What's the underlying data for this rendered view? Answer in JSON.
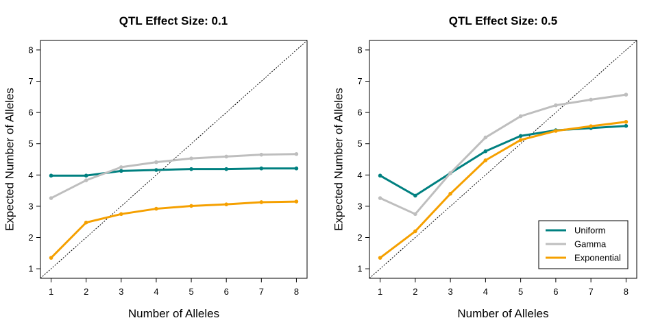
{
  "chart_data": [
    {
      "type": "line",
      "title": "QTL Effect Size: 0.1",
      "xlabel": "Number of Alleles",
      "ylabel": "Expected Number of Alleles",
      "xlim": [
        1,
        8
      ],
      "ylim": [
        1,
        8
      ],
      "x": [
        1,
        2,
        3,
        4,
        5,
        6,
        7,
        8
      ],
      "xticks": [
        "1",
        "2",
        "3",
        "4",
        "5",
        "6",
        "7",
        "8"
      ],
      "yticks": [
        "1",
        "2",
        "3",
        "4",
        "5",
        "6",
        "7",
        "8"
      ],
      "reference_line": "y = x (dotted)",
      "legend": false,
      "series": [
        {
          "name": "Uniform",
          "color": "#008080",
          "values": [
            3.98,
            3.98,
            4.13,
            4.16,
            4.19,
            4.19,
            4.21,
            4.21
          ]
        },
        {
          "name": "Gamma",
          "color": "#bebebe",
          "values": [
            3.26,
            3.83,
            4.25,
            4.41,
            4.53,
            4.59,
            4.65,
            4.67
          ]
        },
        {
          "name": "Exponential",
          "color": "#f5a000",
          "values": [
            1.35,
            2.48,
            2.75,
            2.92,
            3.01,
            3.06,
            3.13,
            3.15
          ]
        }
      ]
    },
    {
      "type": "line",
      "title": "QTL Effect Size: 0.5",
      "xlabel": "Number of Alleles",
      "ylabel": "Expected Number of Alleles",
      "xlim": [
        1,
        8
      ],
      "ylim": [
        1,
        8
      ],
      "x": [
        1,
        2,
        3,
        4,
        5,
        6,
        7,
        8
      ],
      "xticks": [
        "1",
        "2",
        "3",
        "4",
        "5",
        "6",
        "7",
        "8"
      ],
      "yticks": [
        "1",
        "2",
        "3",
        "4",
        "5",
        "6",
        "7",
        "8"
      ],
      "reference_line": "y = x (dotted)",
      "legend": true,
      "legend_position": "bottom-right",
      "series": [
        {
          "name": "Uniform",
          "color": "#008080",
          "values": [
            3.98,
            3.34,
            4.06,
            4.76,
            5.25,
            5.43,
            5.5,
            5.57
          ]
        },
        {
          "name": "Gamma",
          "color": "#bebebe",
          "values": [
            3.26,
            2.75,
            4.06,
            5.2,
            5.88,
            6.23,
            6.41,
            6.57
          ]
        },
        {
          "name": "Exponential",
          "color": "#f5a000",
          "values": [
            1.35,
            2.2,
            3.4,
            4.47,
            5.12,
            5.41,
            5.56,
            5.7
          ]
        }
      ]
    }
  ]
}
